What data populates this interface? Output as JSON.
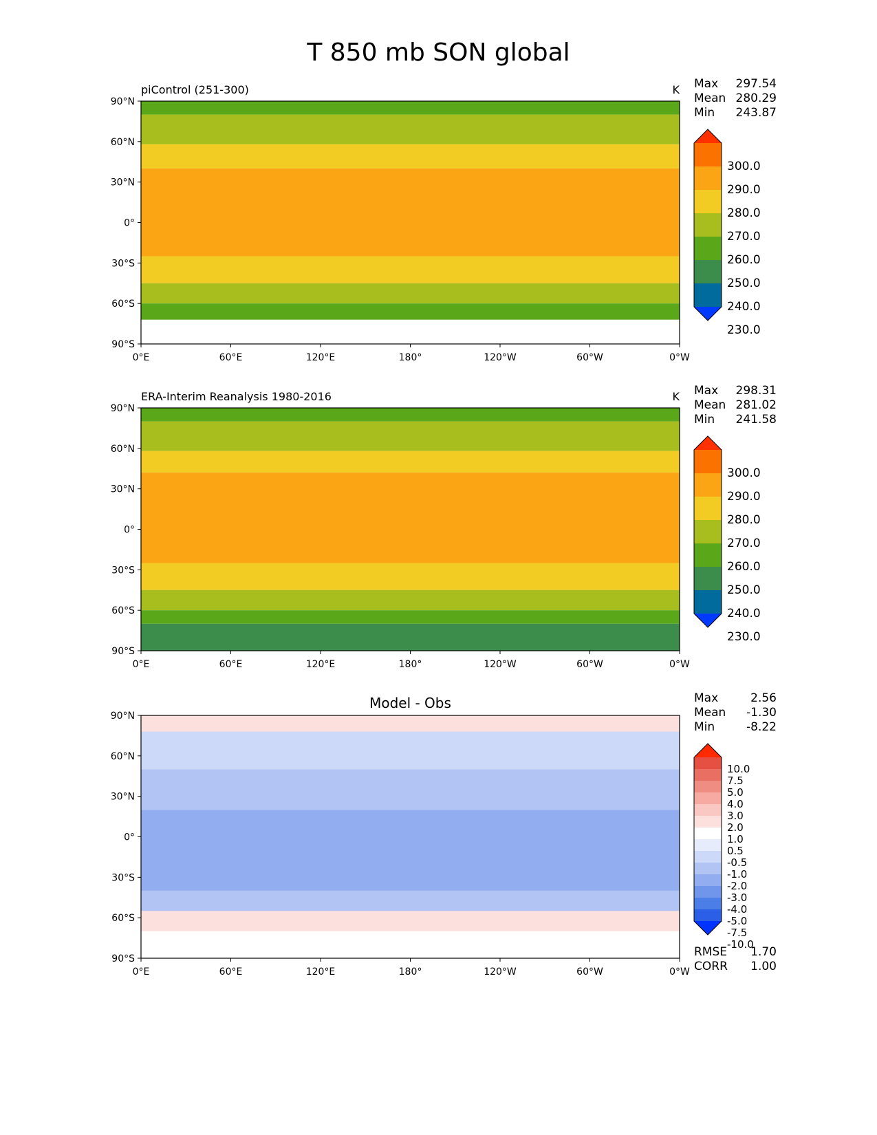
{
  "figure": {
    "title": "T 850 mb SON global"
  },
  "colors": {
    "abs_levels": [
      "#0039ff",
      "#006b9c",
      "#3c8c4b",
      "#5aa81a",
      "#a8be1e",
      "#f2cc22",
      "#fba414",
      "#fb7200",
      "#ff3100"
    ],
    "diff_levels": [
      "#0033ff",
      "#2b5fe8",
      "#4c7ee8",
      "#6f96eb",
      "#92aef0",
      "#b1c4f3",
      "#cdd9f8",
      "#e6ecfb",
      "#ffffff",
      "#fbe0dd",
      "#f9c8c2",
      "#f6aaa2",
      "#f08d83",
      "#e96f63",
      "#e55043",
      "#ff2a00"
    ]
  },
  "chart_data": [
    {
      "type": "heatmap",
      "title": "piControl (251-300)",
      "units": "K",
      "stats": {
        "max_label": "Max",
        "max": "297.54",
        "mean_label": "Mean",
        "mean": "280.29",
        "min_label": "Min",
        "min": "243.87"
      },
      "x_ticks": [
        "0°E",
        "60°E",
        "120°E",
        "180°",
        "120°W",
        "60°W",
        "0°W"
      ],
      "y_ticks": [
        "90°N",
        "60°N",
        "30°N",
        "0°",
        "30°S",
        "60°S",
        "90°S"
      ],
      "xlim": [
        0,
        360
      ],
      "ylim": [
        -90,
        90
      ],
      "colorbar": {
        "levels": [
          "300.0",
          "290.0",
          "280.0",
          "270.0",
          "260.0",
          "250.0",
          "240.0",
          "230.0"
        ]
      },
      "zonal_profile": [
        {
          "lat_range": [
            90,
            80
          ],
          "value": 255
        },
        {
          "lat_range": [
            80,
            58
          ],
          "value": 265
        },
        {
          "lat_range": [
            58,
            40
          ],
          "value": 275
        },
        {
          "lat_range": [
            40,
            -25
          ],
          "value": 285
        },
        {
          "lat_range": [
            -25,
            -45
          ],
          "value": 275
        },
        {
          "lat_range": [
            -45,
            -60
          ],
          "value": 265
        },
        {
          "lat_range": [
            -60,
            -72
          ],
          "value": 255
        }
      ]
    },
    {
      "type": "heatmap",
      "title": "ERA-Interim Reanalysis 1980-2016",
      "units": "K",
      "stats": {
        "max_label": "Max",
        "max": "298.31",
        "mean_label": "Mean",
        "mean": "281.02",
        "min_label": "Min",
        "min": "241.58"
      },
      "x_ticks": [
        "0°E",
        "60°E",
        "120°E",
        "180°",
        "120°W",
        "60°W",
        "0°W"
      ],
      "y_ticks": [
        "90°N",
        "60°N",
        "30°N",
        "0°",
        "30°S",
        "60°S",
        "90°S"
      ],
      "xlim": [
        0,
        360
      ],
      "ylim": [
        -90,
        90
      ],
      "colorbar": {
        "levels": [
          "300.0",
          "290.0",
          "280.0",
          "270.0",
          "260.0",
          "250.0",
          "240.0",
          "230.0"
        ]
      },
      "zonal_profile": [
        {
          "lat_range": [
            90,
            80
          ],
          "value": 255
        },
        {
          "lat_range": [
            80,
            58
          ],
          "value": 265
        },
        {
          "lat_range": [
            58,
            42
          ],
          "value": 275
        },
        {
          "lat_range": [
            42,
            -25
          ],
          "value": 285
        },
        {
          "lat_range": [
            -25,
            -45
          ],
          "value": 275
        },
        {
          "lat_range": [
            -45,
            -60
          ],
          "value": 265
        },
        {
          "lat_range": [
            -60,
            -70
          ],
          "value": 255
        },
        {
          "lat_range": [
            -70,
            -90
          ],
          "value": 245
        }
      ]
    },
    {
      "type": "heatmap",
      "title": "Model - Obs",
      "units": "",
      "stats": {
        "max_label": "Max",
        "max": "2.56",
        "mean_label": "Mean",
        "mean": "-1.30",
        "min_label": "Min",
        "min": "-8.22"
      },
      "extra_stats": {
        "rmse_label": "RMSE",
        "rmse": "1.70",
        "corr_label": "CORR",
        "corr": "1.00"
      },
      "x_ticks": [
        "0°E",
        "60°E",
        "120°E",
        "180°",
        "120°W",
        "60°W",
        "0°W"
      ],
      "y_ticks": [
        "90°N",
        "60°N",
        "30°N",
        "0°",
        "30°S",
        "60°S",
        "90°S"
      ],
      "xlim": [
        0,
        360
      ],
      "ylim": [
        -90,
        90
      ],
      "colorbar": {
        "levels": [
          "10.0",
          "7.5",
          "5.0",
          "4.0",
          "3.0",
          "2.0",
          "1.0",
          "0.5",
          "-0.5",
          "-1.0",
          "-2.0",
          "-3.0",
          "-4.0",
          "-5.0",
          "-7.5",
          "-10.0"
        ]
      },
      "zonal_profile": [
        {
          "lat_range": [
            90,
            78
          ],
          "value": 1.5
        },
        {
          "lat_range": [
            78,
            50
          ],
          "value": -0.8
        },
        {
          "lat_range": [
            50,
            20
          ],
          "value": -1.5
        },
        {
          "lat_range": [
            20,
            -40
          ],
          "value": -2.5
        },
        {
          "lat_range": [
            -40,
            -55
          ],
          "value": -1.5
        },
        {
          "lat_range": [
            -55,
            -70
          ],
          "value": 1.5
        },
        {
          "lat_range": [
            -70,
            -90
          ],
          "value": 0
        }
      ]
    }
  ]
}
